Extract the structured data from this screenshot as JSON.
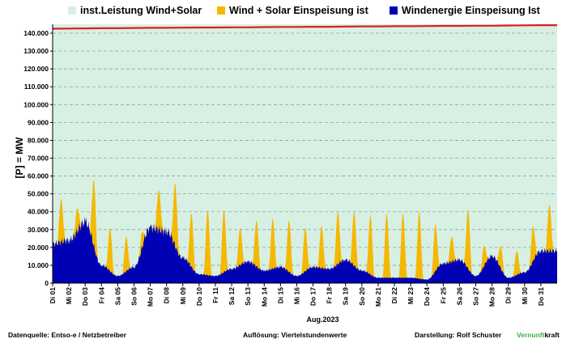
{
  "legend": [
    {
      "label": "inst.Leistung Wind+Solar",
      "color": "#d8f0e4"
    },
    {
      "label": "Wind + Solar Einspeisung ist",
      "color": "#f5b800"
    },
    {
      "label": "Windenergie Einspeisung Ist",
      "color": "#0000b4"
    }
  ],
  "colors": {
    "installed_line": "#e11d1d",
    "plot_bg": "#d8f0e4",
    "grid": "#7faa8f"
  },
  "footer": {
    "source": "Datenquelle:  Entso-e  / Netzbetreiber",
    "resolution": "Auflösung: Viertelstundenwerte",
    "credit": "Darstellung:  Rolf Schuster",
    "brand_a": "Vernunft",
    "brand_b": "kraft"
  },
  "chart_data": {
    "type": "area",
    "xlabel": "Aug.2023",
    "ylabel": "[P] =   MW",
    "ylim": [
      0,
      145000
    ],
    "yticks": [
      0,
      10000,
      20000,
      30000,
      40000,
      50000,
      60000,
      70000,
      80000,
      90000,
      100000,
      110000,
      120000,
      130000,
      140000
    ],
    "ytick_labels": [
      "0",
      "10.000",
      "20.000",
      "30.000",
      "40.000",
      "50.000",
      "60.000",
      "70.000",
      "80.000",
      "90.000",
      "100.000",
      "110.000",
      "120.000",
      "130.000",
      "140.000"
    ],
    "grid": true,
    "legend_position": "top",
    "categories": [
      "Di 01",
      "Mi 02",
      "Do 03",
      "Fr 04",
      "Sa 05",
      "So 06",
      "Mo 07",
      "Di 08",
      "Mi 09",
      "Do 10",
      "Fr 11",
      "Sa 12",
      "So 13",
      "Mo 14",
      "Di 15",
      "Mi 16",
      "Do 17",
      "Fr 18",
      "Sa 19",
      "So 20",
      "Mo 21",
      "Di 22",
      "Mi 23",
      "Do 24",
      "Fr 25",
      "Sa 26",
      "So 27",
      "Mo 28",
      "Di 29",
      "Mi 30",
      "Do 31"
    ],
    "series": [
      {
        "name": "inst.Leistung Wind+Solar",
        "values": [
          142500,
          142600,
          142700,
          142800,
          142800,
          142900,
          143000,
          143000,
          143100,
          143200,
          143200,
          143300,
          143300,
          143400,
          143500,
          143500,
          143600,
          143600,
          143700,
          143800,
          143800,
          143900,
          143900,
          144000,
          144100,
          144100,
          144200,
          144200,
          144300,
          144400,
          144500
        ]
      },
      {
        "name": "Wind + Solar Einspeisung ist",
        "values": [
          47000,
          42000,
          58000,
          31000,
          26000,
          29000,
          52000,
          56000,
          39000,
          41000,
          41000,
          31000,
          35000,
          36000,
          35000,
          31000,
          32000,
          40000,
          40000,
          38000,
          39000,
          39000,
          40000,
          33000,
          26000,
          41000,
          21000,
          21000,
          18000,
          32000,
          44000
        ]
      },
      {
        "name": "Windenergie Einspeisung Ist",
        "values": [
          22000,
          24000,
          34000,
          10000,
          4000,
          9000,
          31000,
          29000,
          14000,
          5000,
          4000,
          8000,
          12000,
          7000,
          9000,
          4000,
          9000,
          8000,
          13000,
          7000,
          3000,
          3000,
          3000,
          2000,
          11000,
          13000,
          4000,
          15000,
          3000,
          6000,
          18000
        ]
      }
    ]
  }
}
